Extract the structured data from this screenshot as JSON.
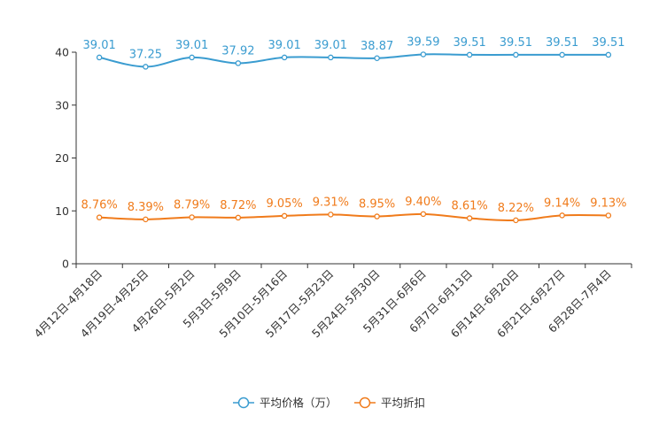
{
  "chart_data": {
    "type": "line",
    "title": "",
    "xlabel": "",
    "ylabel": "",
    "ylim": [
      0,
      40
    ],
    "yticks": [
      0,
      10,
      20,
      30,
      40
    ],
    "grid": false,
    "legend_position": "bottom-center",
    "categories": [
      "4月12日-4月18日",
      "4月19日-4月25日",
      "4月26日-5月2日",
      "5月3日-5月9日",
      "5月10日-5月16日",
      "5月17日-5月23日",
      "5月24日-5月30日",
      "5月31日-6月6日",
      "6月7日-6月13日",
      "6月14日-6月20日",
      "6月21日-6月27日",
      "6月28日-7月4日"
    ],
    "series": [
      {
        "name": "平均价格（万）",
        "color": "#3a9cd0",
        "values": [
          39.01,
          37.25,
          39.01,
          37.92,
          39.01,
          39.01,
          38.87,
          39.59,
          39.51,
          39.51,
          39.51,
          39.51
        ],
        "labels": [
          "39.01",
          "37.25",
          "39.01",
          "37.92",
          "39.01",
          "39.01",
          "38.87",
          "39.59",
          "39.51",
          "39.51",
          "39.51",
          "39.51"
        ]
      },
      {
        "name": "平均折扣",
        "color": "#f07b1b",
        "values": [
          8.76,
          8.39,
          8.79,
          8.72,
          9.05,
          9.31,
          8.95,
          9.4,
          8.61,
          8.22,
          9.14,
          9.13
        ],
        "labels": [
          "8.76%",
          "8.39%",
          "8.79%",
          "8.72%",
          "9.05%",
          "9.31%",
          "8.95%",
          "9.40%",
          "8.61%",
          "8.22%",
          "9.14%",
          "9.13%"
        ]
      }
    ]
  }
}
